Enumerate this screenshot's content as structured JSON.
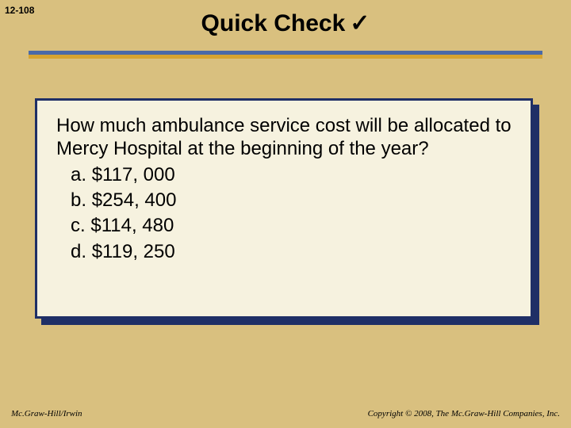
{
  "page_number": "12-108",
  "title": "Quick Check",
  "checkmark_glyph": "✓",
  "colors": {
    "slide_background": "#d9c07f",
    "rule_top": "#4a6aa8",
    "rule_bottom": "#d6a431",
    "box_shadow": "#1f2f66",
    "box_border": "#1f2f66",
    "box_background": "#f6f2df"
  },
  "question": "How much ambulance service cost will be allocated to Mercy Hospital at the beginning of the year?",
  "options": [
    {
      "letter": "a",
      "text": "$117, 000"
    },
    {
      "letter": "b",
      "text": "$254, 400"
    },
    {
      "letter": "c",
      "text": "$114, 480"
    },
    {
      "letter": "d",
      "text": "$119, 250"
    }
  ],
  "footer_left": "Mc.Graw-Hill/Irwin",
  "footer_right": "Copyright © 2008, The Mc.Graw-Hill Companies, Inc."
}
